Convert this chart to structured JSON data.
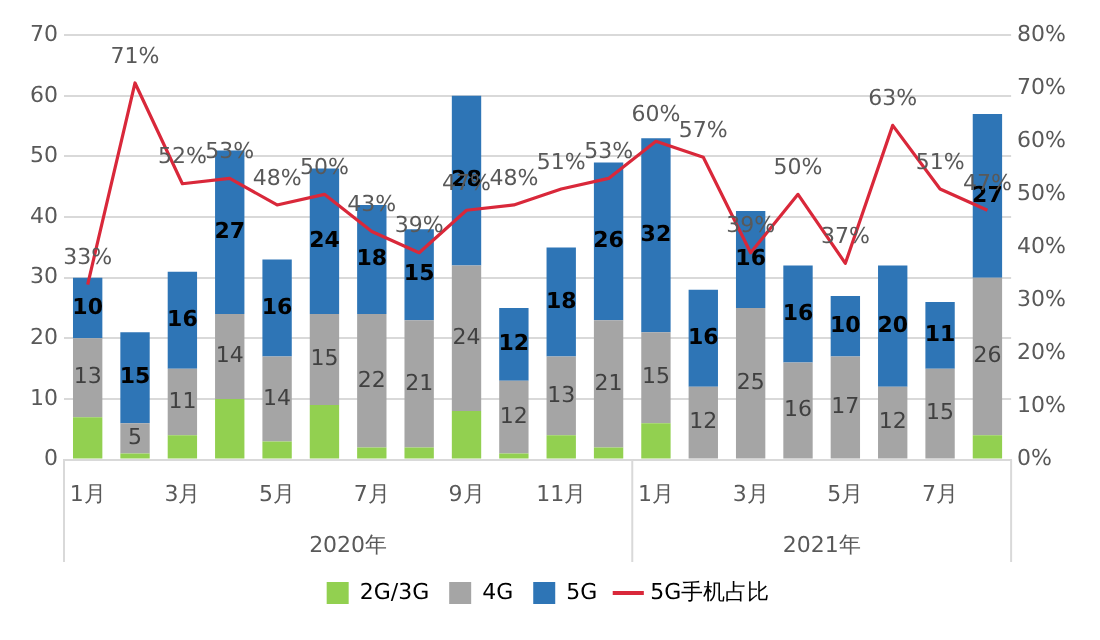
{
  "chart_data": {
    "type": "bar",
    "stacked": true,
    "categories": [
      "1月",
      null,
      "3月",
      null,
      "5月",
      null,
      "7月",
      null,
      "9月",
      null,
      "11月",
      null,
      "1月",
      null,
      "3月",
      null,
      "5月",
      null,
      "7月",
      null
    ],
    "series": [
      {
        "name": "2G/3G",
        "color": "#92d050",
        "values": [
          7,
          1,
          4,
          10,
          3,
          9,
          2,
          2,
          8,
          1,
          4,
          2,
          6,
          0,
          0,
          0,
          0,
          0,
          0,
          4
        ]
      },
      {
        "name": "4G",
        "color": "#a5a5a5",
        "values": [
          13,
          5,
          11,
          14,
          14,
          15,
          22,
          21,
          24,
          12,
          13,
          21,
          15,
          12,
          25,
          16,
          17,
          12,
          15,
          26
        ],
        "value_labels": [
          "13",
          "5",
          "11",
          "14",
          "14",
          "15",
          "22",
          "21",
          "24",
          "12",
          "13",
          "21",
          "15",
          "12",
          "25",
          "16",
          "17",
          "12",
          "15",
          "26"
        ]
      },
      {
        "name": "5G",
        "color": "#2e75b6",
        "values": [
          10,
          15,
          16,
          27,
          16,
          24,
          18,
          15,
          28,
          12,
          18,
          26,
          32,
          16,
          16,
          16,
          10,
          20,
          11,
          27
        ],
        "value_labels": [
          "10",
          "15",
          "16",
          "27",
          "16",
          "24",
          "18",
          "15",
          "28",
          "12",
          "18",
          "26",
          "32",
          "16",
          "16",
          "16",
          "10",
          "20",
          "11",
          "27"
        ]
      },
      {
        "name": "5G手机占比",
        "type": "line",
        "axis": "y2",
        "color": "#d9283a",
        "values": [
          33,
          71,
          52,
          53,
          48,
          50,
          43,
          39,
          47,
          48,
          51,
          53,
          60,
          57,
          39,
          50,
          37,
          63,
          51,
          47
        ],
        "value_labels": [
          "33%",
          "71%",
          "52%",
          "53%",
          "48%",
          "50%",
          "43%",
          "39%",
          "47%",
          "48%",
          "51%",
          "53%",
          "60%",
          "57%",
          "39%",
          "50%",
          "37%",
          "63%",
          "51%",
          "47%"
        ]
      }
    ],
    "ylim": [
      0,
      70
    ],
    "yticks": [
      0,
      10,
      20,
      30,
      40,
      50,
      60,
      70
    ],
    "y2lim": [
      0,
      80
    ],
    "y2ticks": [
      {
        "value": 0,
        "label": "0%"
      },
      {
        "value": 10,
        "label": "10%"
      },
      {
        "value": 20,
        "label": "20%"
      },
      {
        "value": 30,
        "label": "30%"
      },
      {
        "value": 40,
        "label": "40%"
      },
      {
        "value": 50,
        "label": "50%"
      },
      {
        "value": 60,
        "label": "60%"
      },
      {
        "value": 70,
        "label": "70%"
      },
      {
        "value": 80,
        "label": "80%"
      }
    ],
    "grid": "y",
    "legend": "bottom",
    "marker": "none",
    "annotations": [
      "2020年",
      "2021年"
    ]
  }
}
